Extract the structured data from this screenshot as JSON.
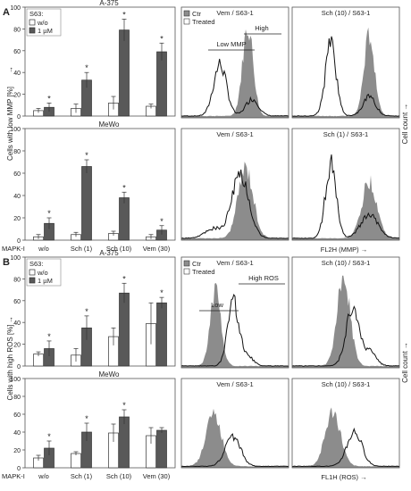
{
  "colors": {
    "ctr_fill": "#8c8c8c",
    "bar_dark": "#595959",
    "bar_white": "#ffffff",
    "frame": "#555555",
    "curve": "#111111"
  },
  "legend_bar": {
    "header": "S63:",
    "wo": "w/o",
    "one_um": "1 µM"
  },
  "legend_hist": {
    "ctr": "Ctr",
    "treated": "Treated"
  },
  "x_categories": [
    "w/o",
    "Sch (1)",
    "Sch (10)",
    "Vem (30)"
  ],
  "mapk_label": "MAPK-I",
  "panels": [
    {
      "letter": "A",
      "ylabel": "Cells with low MMP [%]",
      "y_ticks": [
        "0",
        "20",
        "40",
        "60",
        "80",
        "100"
      ],
      "cell_count": "Cell count",
      "hist_xlabel": "FL2H (MMP)",
      "hist_titles": [
        "Vem / S63-1",
        "Sch (10) / S63-1",
        "Vem / S63-1",
        "Sch (1) / S63-1"
      ],
      "gate_labels": [
        "Low MMP",
        "High"
      ],
      "charts": [
        {
          "title": "A-375",
          "series": [
            {
              "name": "w/o",
              "values": [
                5,
                7,
                12,
                9
              ],
              "errors": [
                2,
                4,
                6,
                2
              ]
            },
            {
              "name": "1 µM",
              "values": [
                8,
                33,
                79,
                59
              ],
              "errors": [
                4,
                7,
                10,
                8
              ]
            }
          ],
          "stars": [
            true,
            true,
            true,
            true
          ]
        },
        {
          "title": "MeWo",
          "series": [
            {
              "name": "w/o",
              "values": [
                3,
                5,
                6,
                3
              ],
              "errors": [
                2,
                2,
                2,
                2
              ]
            },
            {
              "name": "1 µM",
              "values": [
                15,
                66,
                38,
                9
              ],
              "errors": [
                5,
                6,
                5,
                4
              ]
            }
          ],
          "stars": [
            true,
            true,
            true,
            true
          ]
        }
      ]
    },
    {
      "letter": "B",
      "ylabel": "Cells with high ROS [%]",
      "y_ticks": [
        "0",
        "20",
        "40",
        "60",
        "80",
        "100"
      ],
      "cell_count": "Cell count",
      "hist_xlabel": "FL1H (ROS)",
      "hist_titles": [
        "Vem / S63-1",
        "Sch (10) / S63-1",
        "Vem / S63-1",
        "Sch (10) / S63-1"
      ],
      "gate_labels": [
        "Low",
        "High ROS"
      ],
      "charts": [
        {
          "title": "A-375",
          "series": [
            {
              "name": "w/o",
              "values": [
                11,
                10,
                27,
                39
              ],
              "errors": [
                2,
                6,
                8,
                19
              ]
            },
            {
              "name": "1 µM",
              "values": [
                16,
                35,
                67,
                58
              ],
              "errors": [
                7,
                11,
                9,
                5
              ]
            }
          ],
          "stars": [
            true,
            true,
            true,
            true
          ]
        },
        {
          "title": "MeWo",
          "series": [
            {
              "name": "w/o",
              "values": [
                11,
                16,
                39,
                36
              ],
              "errors": [
                3,
                2,
                10,
                9
              ]
            },
            {
              "name": "1 µM",
              "values": [
                22,
                40,
                57,
                42
              ],
              "errors": [
                8,
                10,
                8,
                3
              ]
            }
          ],
          "stars": [
            true,
            true,
            true,
            false
          ]
        }
      ]
    }
  ],
  "chart_data": [
    {
      "type": "bar",
      "title": "A-375",
      "ylabel": "Cells with low MMP [%]",
      "xlabel": "MAPK-I",
      "ylim": [
        0,
        100
      ],
      "categories": [
        "w/o",
        "Sch (1)",
        "Sch (10)",
        "Vem (30)"
      ],
      "series": [
        {
          "name": "w/o",
          "values": [
            5,
            7,
            12,
            9
          ]
        },
        {
          "name": "1 µM",
          "values": [
            8,
            33,
            79,
            59
          ]
        }
      ]
    },
    {
      "type": "bar",
      "title": "MeWo",
      "ylabel": "Cells with low MMP [%]",
      "xlabel": "MAPK-I",
      "ylim": [
        0,
        100
      ],
      "categories": [
        "w/o",
        "Sch (1)",
        "Sch (10)",
        "Vem (30)"
      ],
      "series": [
        {
          "name": "w/o",
          "values": [
            3,
            5,
            6,
            3
          ]
        },
        {
          "name": "1 µM",
          "values": [
            15,
            66,
            38,
            9
          ]
        }
      ]
    },
    {
      "type": "bar",
      "title": "A-375",
      "ylabel": "Cells with high ROS [%]",
      "xlabel": "MAPK-I",
      "ylim": [
        0,
        100
      ],
      "categories": [
        "w/o",
        "Sch (1)",
        "Sch (10)",
        "Vem (30)"
      ],
      "series": [
        {
          "name": "w/o",
          "values": [
            11,
            10,
            27,
            39
          ]
        },
        {
          "name": "1 µM",
          "values": [
            16,
            35,
            67,
            58
          ]
        }
      ]
    },
    {
      "type": "bar",
      "title": "MeWo",
      "ylabel": "Cells with high ROS [%]",
      "xlabel": "MAPK-I",
      "ylim": [
        0,
        100
      ],
      "categories": [
        "w/o",
        "Sch (1)",
        "Sch (10)",
        "Vem (30)"
      ],
      "series": [
        {
          "name": "w/o",
          "values": [
            11,
            16,
            39,
            36
          ]
        },
        {
          "name": "1 µM",
          "values": [
            22,
            40,
            57,
            42
          ]
        }
      ]
    }
  ]
}
